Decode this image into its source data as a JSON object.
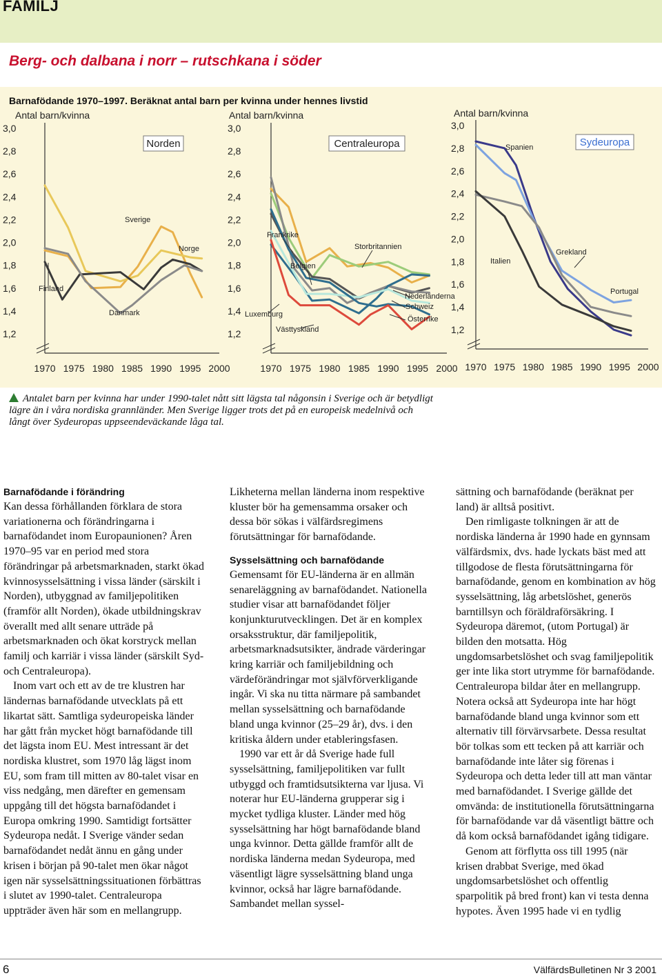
{
  "page": {
    "section": "FAMILJ",
    "headline": "Berg- och dalbana i norr – rutschkana i söder",
    "chart_subtitle": "Barnafödande 1970–1997. Beräknat antal barn per kvinna under hennes livstid",
    "caption": "Antalet barn per kvinna har under 1990-talet nått sitt lägsta tal någonsin i Sverige och är betydligt lägre än i våra nordiska grannländer. Men Sverige ligger trots det på en europeisk medelnivå och långt över Sydeuropas uppseendeväckande låga tal.",
    "page_number": "6",
    "journal": "VälfärdsBulletinen Nr 3  2001"
  },
  "colors": {
    "accent": "#c8102e",
    "header_bg": "#e7efc5",
    "chart_bg": "#fbf6db",
    "caption_triangle": "#2e7d32"
  },
  "chart_data": [
    {
      "type": "line",
      "box_label": "Norden",
      "ylabel": "Antal barn/kvinna",
      "ylim": [
        1.2,
        3.0
      ],
      "yticks": [
        "3,0",
        "2,8",
        "2,6",
        "2,4",
        "2,2",
        "2,0",
        "1,8",
        "1,6",
        "1,4",
        "1,2"
      ],
      "xticks": [
        "1970",
        "1975",
        "1980",
        "1985",
        "1990",
        "1995",
        "2000"
      ],
      "series": [
        {
          "name": "Sverige",
          "color": "#e8b04a",
          "x": [
            1970,
            1974,
            1978,
            1983,
            1986,
            1990,
            1992,
            1995,
            1997
          ],
          "y": [
            1.93,
            1.88,
            1.6,
            1.61,
            1.79,
            2.14,
            2.09,
            1.73,
            1.52
          ]
        },
        {
          "name": "Norge",
          "color": "#e8c85a",
          "x": [
            1970,
            1974,
            1977,
            1983,
            1986,
            1990,
            1995,
            1997
          ],
          "y": [
            2.5,
            2.13,
            1.75,
            1.66,
            1.71,
            1.93,
            1.87,
            1.86
          ]
        },
        {
          "name": "Finland",
          "color": "#3a3a3a",
          "x": [
            1970,
            1973,
            1976,
            1983,
            1987,
            1990,
            1992,
            1995,
            1997
          ],
          "y": [
            1.83,
            1.5,
            1.72,
            1.74,
            1.59,
            1.78,
            1.85,
            1.81,
            1.75
          ]
        },
        {
          "name": "Danmark",
          "color": "#8a8a8a",
          "x": [
            1970,
            1974,
            1977,
            1983,
            1985,
            1990,
            1994,
            1997
          ],
          "y": [
            1.95,
            1.9,
            1.66,
            1.38,
            1.45,
            1.67,
            1.8,
            1.75
          ]
        }
      ]
    },
    {
      "type": "line",
      "box_label": "Centraleuropa",
      "ylabel": "Antal barn/kvinna",
      "ylim": [
        1.2,
        3.0
      ],
      "yticks": [
        "3,0",
        "2,8",
        "2,6",
        "2,4",
        "2,2",
        "2,0",
        "1,8",
        "1,6",
        "1,4",
        "1,2"
      ],
      "xticks": [
        "1970",
        "1975",
        "1980",
        "1985",
        "1990",
        "1995",
        "2000"
      ],
      "series": [
        {
          "name": "Frankrike",
          "color": "#e8b04a",
          "x": [
            1970,
            1973,
            1976,
            1980,
            1983,
            1987,
            1990,
            1994,
            1997
          ],
          "y": [
            2.47,
            2.31,
            1.83,
            1.95,
            1.79,
            1.82,
            1.78,
            1.65,
            1.71
          ]
        },
        {
          "name": "Storbritannien",
          "color": "#9ccc7a",
          "x": [
            1970,
            1973,
            1977,
            1980,
            1985,
            1990,
            1994,
            1997
          ],
          "y": [
            2.43,
            2.04,
            1.69,
            1.89,
            1.79,
            1.83,
            1.74,
            1.72
          ]
        },
        {
          "name": "Belgien",
          "color": "#555555",
          "x": [
            1970,
            1973,
            1977,
            1980,
            1985,
            1990,
            1994,
            1997
          ],
          "y": [
            2.25,
            1.95,
            1.7,
            1.68,
            1.51,
            1.62,
            1.56,
            1.6
          ]
        },
        {
          "name": "Nederländerna",
          "color": "#8a8a8a",
          "x": [
            1970,
            1974,
            1977,
            1980,
            1983,
            1987,
            1990,
            1994,
            1997
          ],
          "y": [
            2.57,
            1.77,
            1.58,
            1.6,
            1.47,
            1.56,
            1.62,
            1.57,
            1.56
          ]
        },
        {
          "name": "Luxemburg",
          "color": "#2f6e8e",
          "x": [
            1970,
            1974,
            1977,
            1980,
            1985,
            1988,
            1990,
            1994,
            1997
          ],
          "y": [
            1.98,
            1.71,
            1.49,
            1.5,
            1.38,
            1.51,
            1.62,
            1.72,
            1.71
          ]
        },
        {
          "name": "Schweiz",
          "color": "#b8e8dc",
          "x": [
            1970,
            1973,
            1976,
            1980,
            1985,
            1990,
            1994,
            1997
          ],
          "y": [
            2.1,
            1.82,
            1.55,
            1.55,
            1.52,
            1.59,
            1.49,
            1.47
          ]
        },
        {
          "name": "Österrike",
          "color": "#2f6e8e",
          "x": [
            1970,
            1973,
            1976,
            1980,
            1985,
            1988,
            1990,
            1994,
            1997
          ],
          "y": [
            2.29,
            1.94,
            1.69,
            1.65,
            1.47,
            1.44,
            1.46,
            1.44,
            1.37
          ]
        },
        {
          "name": "Västtyskland",
          "color": "#dd4a3c",
          "x": [
            1970,
            1973,
            1975,
            1980,
            1985,
            1987,
            1990,
            1994,
            1997
          ],
          "y": [
            2.02,
            1.54,
            1.45,
            1.45,
            1.28,
            1.37,
            1.45,
            1.24,
            1.35
          ]
        }
      ]
    },
    {
      "type": "line",
      "box_label": "Sydeuropa",
      "ylabel": "Antal barn/kvinna",
      "ylim": [
        1.2,
        3.0
      ],
      "yticks": [
        "3,0",
        "2,8",
        "2,6",
        "2,4",
        "2,2",
        "2,0",
        "1,8",
        "1,6",
        "1,4",
        "1,2"
      ],
      "xticks": [
        "1970",
        "1975",
        "1980",
        "1985",
        "1990",
        "1995",
        "2000"
      ],
      "series": [
        {
          "name": "Spanien",
          "color": "#3a3a8a",
          "x": [
            1970,
            1975,
            1977,
            1980,
            1983,
            1986,
            1990,
            1994,
            1997
          ],
          "y": [
            2.86,
            2.8,
            2.65,
            2.2,
            1.8,
            1.56,
            1.36,
            1.2,
            1.15
          ]
        },
        {
          "name": "Portugal",
          "color": "#7da3e0",
          "x": [
            1970,
            1975,
            1977,
            1980,
            1985,
            1988,
            1990,
            1994,
            1997
          ],
          "y": [
            2.83,
            2.58,
            2.52,
            2.18,
            1.72,
            1.62,
            1.55,
            1.44,
            1.46
          ]
        },
        {
          "name": "Grekland",
          "color": "#8a8a8a",
          "x": [
            1970,
            1975,
            1978,
            1981,
            1985,
            1990,
            1994,
            1997
          ],
          "y": [
            2.39,
            2.33,
            2.29,
            2.1,
            1.68,
            1.4,
            1.35,
            1.32
          ]
        },
        {
          "name": "Italien",
          "color": "#3a3a3a",
          "x": [
            1970,
            1975,
            1978,
            1981,
            1985,
            1990,
            1994,
            1997
          ],
          "y": [
            2.42,
            2.2,
            1.9,
            1.58,
            1.42,
            1.32,
            1.23,
            1.19
          ]
        }
      ]
    }
  ],
  "columns": {
    "col1": [
      {
        "kind": "h",
        "text": "Barnafödande i förändring"
      },
      {
        "kind": "p",
        "text": "Kan dessa förhållanden förklara de stora variationerna och förändringarna i barnafödandet inom Europaunionen? Åren 1970–95 var en period med stora förändringar på arbetsmarknaden, starkt ökad kvinnosysselsättning i vissa länder (särskilt i Norden), utbyggnad av familjepolitiken (framför allt Norden), ökade utbildningskrav överallt med allt senare utträde på arbetsmarknaden och ökat korstryck mellan familj och karriär i vissa länder (särskilt Syd- och Centraleuropa)."
      },
      {
        "kind": "pi",
        "text": "Inom vart och ett av de tre klustren har ländernas barnafödande utvecklats på ett likartat sätt. Samtliga sydeuropeiska länder har gått från mycket högt barnafödande till det lägsta inom EU. Mest intressant är det nordiska klustret, som 1970 låg lägst inom EU, som fram till mitten av 80-talet visar en viss nedgång, men därefter en gemensam uppgång till det högsta barnafödandet i Europa omkring 1990. Samtidigt fortsätter Sydeuropa nedåt. I Sverige vänder sedan barnafödandet nedåt ännu en gång under krisen i början på 90-talet men ökar något igen när sysselsättningssituationen förbättras i slutet av 1990-talet. Centraleuropa uppträder även här som en mellangrupp."
      }
    ],
    "col2": [
      {
        "kind": "p",
        "text": "Likheterna mellan länderna inom respektive kluster bör ha gemensamma orsaker och dessa bör sökas i välfärdsregimens förutsättningar för barnafödande."
      },
      {
        "kind": "hs",
        "text": "Sysselsättning och barnafödande"
      },
      {
        "kind": "p",
        "text": "Gemensamt för EU-länderna är en allmän senareläggning av barnafödandet. Nationella studier visar att barnafödandet följer konjunkturutvecklingen. Det är en komplex orsaksstruktur, där familjepolitik, arbetsmarknadsutsikter, ändrade värderingar kring karriär och familjebildning och värdeförändringar mot självförverkligande ingår. Vi ska nu titta närmare på sambandet mellan sysselsättning och barnafödande bland unga kvinnor (25–29 år), dvs. i den kritiska åldern under etableringsfasen."
      },
      {
        "kind": "pi",
        "text": "1990 var ett år då Sverige hade full sysselsättning, familjepolitiken var fullt utbyggd och framtidsutsikterna var ljusa. Vi noterar hur EU-länderna grupperar sig i mycket tydliga kluster. Länder med hög sysselsättning har högt barnafödande bland unga kvinnor. Detta gällde framför allt de nordiska länderna medan Sydeuropa, med väsentligt lägre sysselsättning bland unga kvinnor, också har lägre barnafödande. Sambandet mellan syssel-"
      }
    ],
    "col3": [
      {
        "kind": "p",
        "text": "sättning och barnafödande (beräknat per land) är alltså positivt."
      },
      {
        "kind": "pi",
        "text": "Den rimligaste tolkningen är att de nordiska länderna år 1990 hade en gynnsam välfärdsmix, dvs. hade lyckats bäst med att tillgodose de flesta förutsättningarna för barnafödande, genom en kombination av hög sysselsättning, låg arbetslöshet, generös barntillsyn och föräldraförsäkring. I Sydeuropa däremot, (utom Portugal) är bilden den motsatta. Hög ungdomsarbetslöshet och svag familjepolitik ger inte lika stort utrymme för barnafödande. Centraleuropa bildar åter en mellangrupp. Notera också att Sydeuropa inte har högt barnafödande bland unga kvinnor som ett alternativ till förvärvsarbete. Dessa resultat bör tolkas som ett tecken på att karriär och barnafödande inte låter sig förenas i Sydeuropa och detta leder till att man väntar med barnafödandet. I Sverige gällde det omvända: de institutionella förutsättningarna för barnafödande var då väsentligt bättre och då kom också barnafödandet igång tidigare."
      },
      {
        "kind": "pi",
        "text": "Genom att förflytta oss till 1995 (när krisen drabbat Sverige, med ökad ungdomsarbetslöshet och offentlig sparpolitik på bred front) kan vi testa denna hypotes. Även 1995 hade vi en tydlig"
      }
    ]
  }
}
